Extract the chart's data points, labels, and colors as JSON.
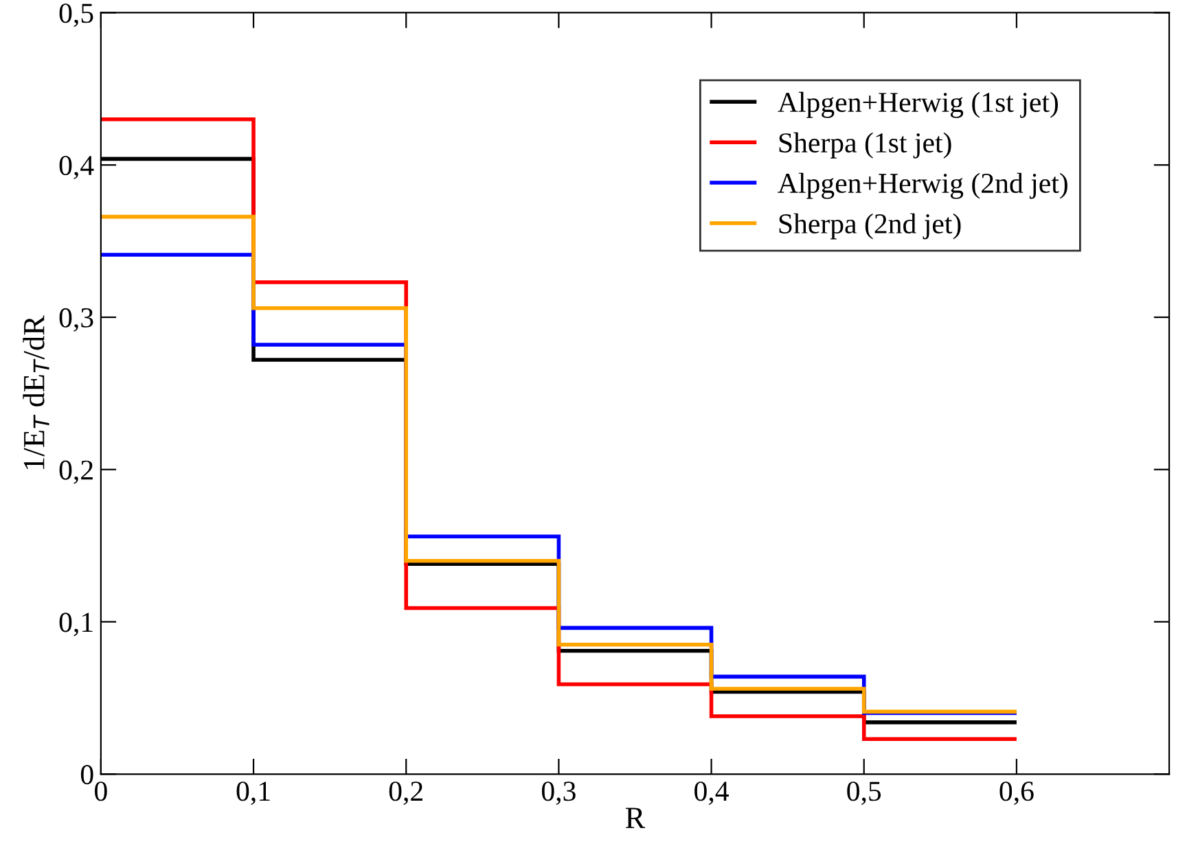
{
  "chart_data": {
    "type": "histogram",
    "xlabel": "R",
    "ylabel": "1/E$_{T}$ dE$_{T}$/dR",
    "bins": [
      0,
      0.1,
      0.2,
      0.3,
      0.4,
      0.5,
      0.6
    ],
    "series": [
      {
        "name": "Alpgen+Herwig (1st jet)",
        "color": "#000000",
        "values": [
          0.404,
          0.272,
          0.138,
          0.081,
          0.054,
          0.034
        ]
      },
      {
        "name": "Sherpa (1st jet)",
        "color": "#ff0000",
        "values": [
          0.43,
          0.323,
          0.109,
          0.059,
          0.038,
          0.023
        ]
      },
      {
        "name": "Alpgen+Herwig (2nd jet)",
        "color": "#0000ff",
        "values": [
          0.341,
          0.282,
          0.156,
          0.096,
          0.064,
          0.04
        ]
      },
      {
        "name": "Sherpa (2nd jet)",
        "color": "#ffa500",
        "values": [
          0.366,
          0.306,
          0.14,
          0.085,
          0.056,
          0.041
        ]
      }
    ],
    "xlim": [
      0,
      0.7
    ],
    "ylim": [
      0,
      0.5
    ],
    "xticks": [
      {
        "value": 0,
        "label": "0"
      },
      {
        "value": 0.1,
        "label": "0,1"
      },
      {
        "value": 0.2,
        "label": "0,2"
      },
      {
        "value": 0.3,
        "label": "0,3"
      },
      {
        "value": 0.4,
        "label": "0,4"
      },
      {
        "value": 0.5,
        "label": "0,5"
      },
      {
        "value": 0.6,
        "label": "0,6"
      }
    ],
    "yticks": [
      {
        "value": 0,
        "label": "0"
      },
      {
        "value": 0.1,
        "label": "0,1"
      },
      {
        "value": 0.2,
        "label": "0,2"
      },
      {
        "value": 0.3,
        "label": "0,3"
      },
      {
        "value": 0.4,
        "label": "0,4"
      },
      {
        "value": 0.5,
        "label": "0,5"
      }
    ],
    "grid": false,
    "legend": "top right"
  }
}
